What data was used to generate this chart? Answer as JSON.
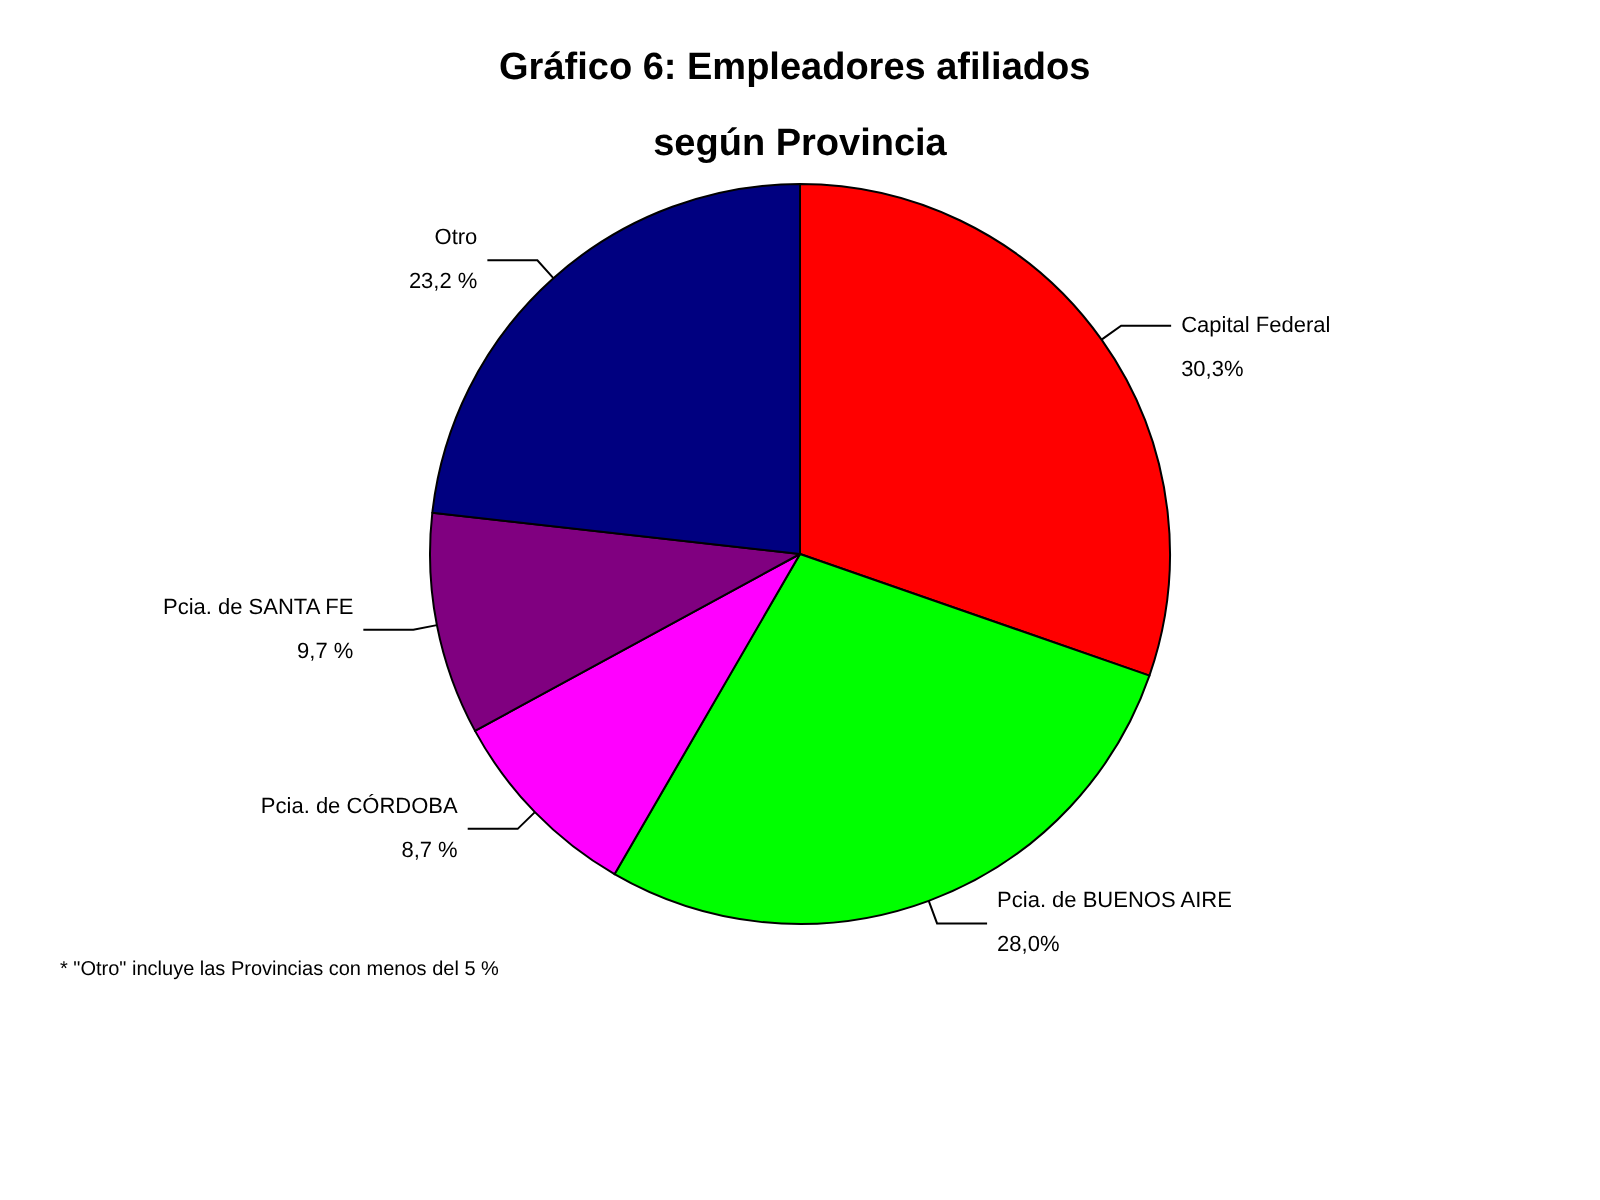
{
  "chart_data": {
    "type": "pie",
    "title": "Gráfico 6: Empleadores afiliados según Provincia",
    "categories": [
      "Capital Federal",
      "Pcia. de BUENOS AIRE",
      "Pcia. de CÓRDOBA",
      "Pcia. de SANTA FE",
      "Otro"
    ],
    "values": [
      30.3,
      28.0,
      8.7,
      9.7,
      23.2
    ],
    "value_labels": [
      "30,3%",
      "28,0%",
      "8,7 %",
      "9,7 %",
      "23,2 %"
    ],
    "colors": [
      "#ff0000",
      "#00ff00",
      "#ff00ff",
      "#800080",
      "#000080"
    ],
    "annotations": [
      "* \"Otro\" incluye las Provincias con menos del 5 %"
    ],
    "legend": false
  }
}
